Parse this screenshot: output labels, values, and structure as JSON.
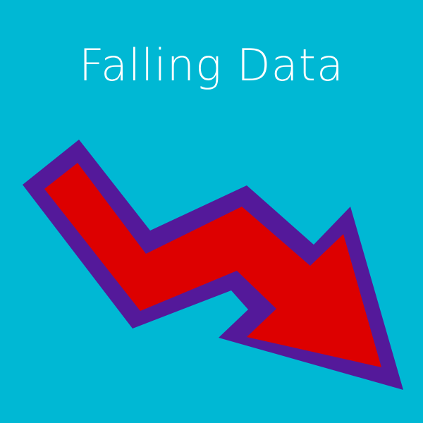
{
  "title": "Falling Data",
  "colors": {
    "background": "#00B8D4",
    "title_text": "#FFFFFF",
    "arrow_fill": "#DD0000",
    "arrow_outline": "#54199A"
  },
  "icon": "falling-trend-arrow-icon"
}
